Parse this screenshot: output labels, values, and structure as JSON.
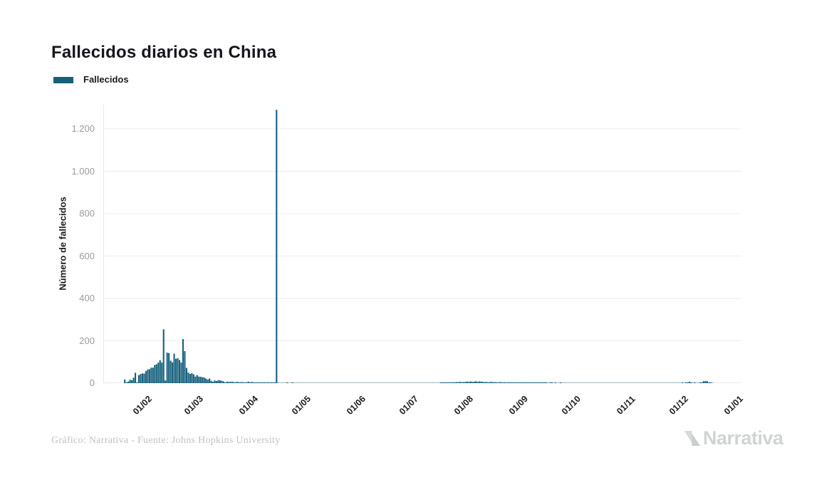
{
  "title": "Fallecidos diarios en China",
  "legend": {
    "label": "Fallecidos",
    "color": "#16607e"
  },
  "y_axis": {
    "title": "Número de fallecidos",
    "ticks": [
      "0",
      "200",
      "400",
      "600",
      "800",
      "1.000",
      "1.200"
    ],
    "tick_values": [
      0,
      200,
      400,
      600,
      800,
      1000,
      1200
    ]
  },
  "x_axis": {
    "ticks": [
      "01/02",
      "01/03",
      "01/04",
      "01/05",
      "01/06",
      "01/07",
      "01/08",
      "01/09",
      "01/10",
      "01/11",
      "01/12",
      "01/01"
    ],
    "tick_day_index": [
      10,
      39,
      70,
      100,
      131,
      161,
      192,
      223,
      253,
      284,
      314,
      345
    ]
  },
  "footer": {
    "attribution": "Gráfico: Narrativa - Fuente: Johns Hopkins University"
  },
  "brand": {
    "name": "Narrativa"
  },
  "chart_data": {
    "type": "bar",
    "title": "Fallecidos diarios en China",
    "series_name": "Fallecidos",
    "xlabel": "",
    "ylabel": "Número de fallecidos",
    "ylim": [
      0,
      1314
    ],
    "grid": "horizontal",
    "legend_position": "top-left",
    "bar_color": "#16607e",
    "start_date": "22/01/2020",
    "cadence": "daily",
    "notable_points": [
      {
        "date": "13/02/2020",
        "value": 254
      },
      {
        "date": "24/02/2020",
        "value": 208
      },
      {
        "date": "17/04/2020",
        "value": 1290
      }
    ],
    "values": [
      17,
      1,
      8,
      16,
      14,
      26,
      49,
      2,
      38,
      43,
      46,
      45,
      57,
      64,
      66,
      73,
      73,
      86,
      89,
      97,
      108,
      97,
      254,
      13,
      144,
      142,
      106,
      98,
      139,
      115,
      118,
      109,
      97,
      208,
      151,
      72,
      50,
      44,
      47,
      42,
      31,
      38,
      31,
      30,
      28,
      27,
      22,
      17,
      22,
      11,
      7,
      13,
      10,
      14,
      13,
      11,
      8,
      3,
      7,
      6,
      6,
      7,
      4,
      5,
      6,
      3,
      5,
      4,
      3,
      1,
      7,
      4,
      6,
      3,
      2,
      1,
      2,
      2,
      1,
      1,
      2,
      1,
      1,
      1,
      1,
      1,
      1290,
      0,
      0,
      0,
      0,
      0,
      1,
      0,
      0,
      1,
      0,
      0,
      0,
      0,
      0,
      0,
      0,
      0,
      0,
      0,
      0,
      0,
      0,
      0,
      0,
      0,
      0,
      0,
      0,
      0,
      0,
      0,
      0,
      0,
      0,
      0,
      0,
      0,
      0,
      0,
      0,
      0,
      0,
      0,
      0,
      0,
      0,
      0,
      0,
      0,
      0,
      0,
      0,
      0,
      0,
      0,
      0,
      0,
      0,
      0,
      0,
      0,
      0,
      0,
      0,
      0,
      0,
      0,
      0,
      0,
      0,
      0,
      0,
      0,
      0,
      0,
      0,
      0,
      0,
      0,
      0,
      0,
      0,
      0,
      0,
      0,
      0,
      0,
      0,
      0,
      0,
      0,
      0,
      1,
      1,
      1,
      2,
      2,
      3,
      4,
      2,
      4,
      5,
      5,
      6,
      5,
      5,
      6,
      7,
      6,
      8,
      6,
      7,
      9,
      6,
      8,
      7,
      6,
      5,
      6,
      4,
      5,
      6,
      4,
      5,
      3,
      4,
      5,
      3,
      4,
      2,
      3,
      4,
      2,
      3,
      2,
      3,
      3,
      2,
      3,
      4,
      2,
      3,
      2,
      1,
      2,
      1,
      2,
      1,
      1,
      2,
      1,
      1,
      1,
      0,
      1,
      1,
      0,
      1,
      0,
      0,
      1,
      0,
      0,
      0,
      0,
      0,
      0,
      0,
      0,
      0,
      0,
      0,
      0,
      0,
      0,
      0,
      0,
      0,
      0,
      0,
      0,
      0,
      0,
      0,
      0,
      0,
      0,
      0,
      0,
      0,
      0,
      0,
      0,
      0,
      0,
      0,
      0,
      0,
      0,
      0,
      0,
      0,
      0,
      0,
      0,
      0,
      0,
      0,
      0,
      0,
      0,
      0,
      0,
      0,
      0,
      0,
      0,
      0,
      0,
      0,
      0,
      0,
      0,
      0,
      0,
      0,
      0,
      0,
      0,
      1,
      0,
      1,
      2,
      7,
      1,
      0,
      1,
      0,
      0,
      1,
      3,
      9,
      10,
      9,
      2,
      1,
      0
    ]
  }
}
